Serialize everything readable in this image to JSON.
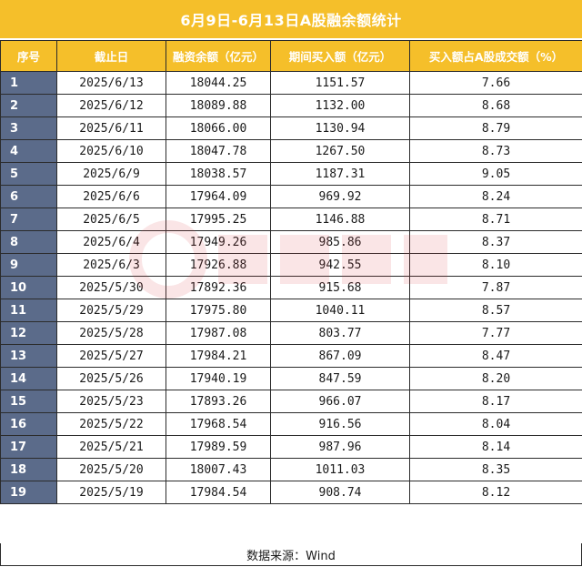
{
  "title": "6月9日-6月13日A股融余额统计",
  "columns": [
    "序号",
    "截止日",
    "融资余额（亿元）",
    "期间买入额（亿元）",
    "买入额占A股成交额（%）"
  ],
  "rows": [
    [
      "1",
      "2025/6/13",
      "18044.25",
      "1151.57",
      "7.66"
    ],
    [
      "2",
      "2025/6/12",
      "18089.88",
      "1132.00",
      "8.68"
    ],
    [
      "3",
      "2025/6/11",
      "18066.00",
      "1130.94",
      "8.79"
    ],
    [
      "4",
      "2025/6/10",
      "18047.78",
      "1267.50",
      "8.73"
    ],
    [
      "5",
      "2025/6/9",
      "18038.57",
      "1187.31",
      "9.05"
    ],
    [
      "6",
      "2025/6/6",
      "17964.09",
      "969.92",
      "8.24"
    ],
    [
      "7",
      "2025/6/5",
      "17995.25",
      "1146.88",
      "8.71"
    ],
    [
      "8",
      "2025/6/4",
      "17949.26",
      "985.86",
      "8.37"
    ],
    [
      "9",
      "2025/6/3",
      "17926.88",
      "942.55",
      "8.10"
    ],
    [
      "10",
      "2025/5/30",
      "17892.36",
      "915.68",
      "7.87"
    ],
    [
      "11",
      "2025/5/29",
      "17975.80",
      "1040.11",
      "8.57"
    ],
    [
      "12",
      "2025/5/28",
      "17987.08",
      "803.77",
      "7.77"
    ],
    [
      "13",
      "2025/5/27",
      "17984.21",
      "867.09",
      "8.47"
    ],
    [
      "14",
      "2025/5/26",
      "17940.19",
      "847.59",
      "8.20"
    ],
    [
      "15",
      "2025/5/23",
      "17893.26",
      "966.07",
      "8.17"
    ],
    [
      "16",
      "2025/5/22",
      "17968.54",
      "916.56",
      "8.04"
    ],
    [
      "17",
      "2025/5/21",
      "17989.59",
      "987.96",
      "8.14"
    ],
    [
      "18",
      "2025/5/20",
      "18007.43",
      "1011.03",
      "8.35"
    ],
    [
      "19",
      "2025/5/19",
      "17984.54",
      "908.74",
      "8.12"
    ]
  ],
  "source": "数据来源：Wind",
  "colors": {
    "header_bg": "#f5bf2a",
    "index_bg": "#5b6b8a",
    "watermark": "#d9363e"
  },
  "watermark_icon": "financial-news-logo-watermark"
}
